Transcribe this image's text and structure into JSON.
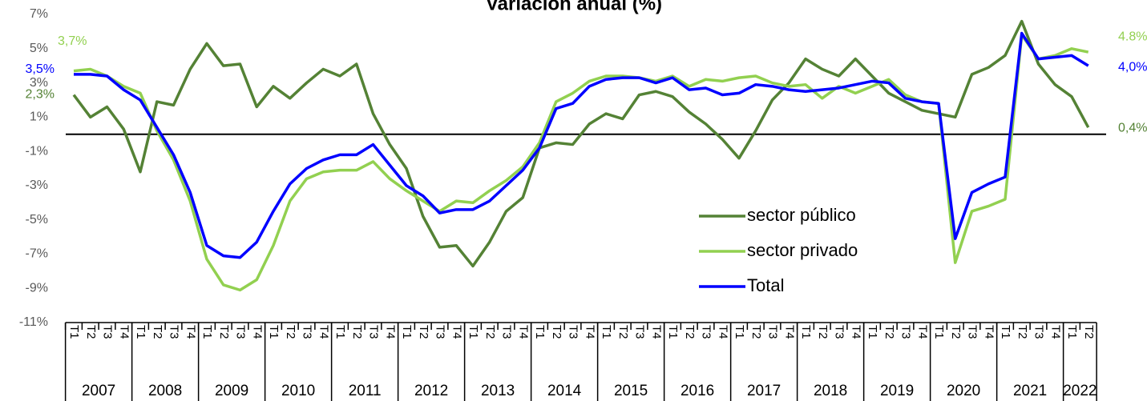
{
  "chart_data": {
    "type": "line",
    "title": "Variación anual (%)",
    "categories": [
      "T1",
      "T2",
      "T3",
      "T4",
      "T1",
      "T2",
      "T3",
      "T4",
      "T1",
      "T2",
      "T3",
      "T4",
      "T1",
      "T2",
      "T3",
      "T4",
      "T1",
      "T2",
      "T3",
      "T4",
      "T1",
      "T2",
      "T3",
      "T4",
      "T1",
      "T2",
      "T3",
      "T4",
      "T1",
      "T2",
      "T3",
      "T4",
      "T1",
      "T2",
      "T3",
      "T4",
      "T1",
      "T2",
      "T3",
      "T4",
      "T1",
      "T2",
      "T3",
      "T4",
      "T1",
      "T2",
      "T3",
      "T4",
      "T1",
      "T2",
      "T3",
      "T4",
      "T1",
      "T2",
      "T3",
      "T4",
      "T1",
      "T2",
      "T3",
      "T4",
      "T1",
      "T2"
    ],
    "years": [
      "2007",
      "2008",
      "2009",
      "2010",
      "2011",
      "2012",
      "2013",
      "2014",
      "2015",
      "2016",
      "2017",
      "2018",
      "2019",
      "2020",
      "2021",
      "2022"
    ],
    "ylim": [
      -11,
      7
    ],
    "yticks": [
      {
        "value": -11,
        "label": "-11%"
      },
      {
        "value": -9,
        "label": "-9%"
      },
      {
        "value": -7,
        "label": "-7%"
      },
      {
        "value": -5,
        "label": "-5%"
      },
      {
        "value": -3,
        "label": "-3%"
      },
      {
        "value": -1,
        "label": "-1%"
      },
      {
        "value": 1,
        "label": "1%"
      },
      {
        "value": 3,
        "label": "3%"
      },
      {
        "value": 5,
        "label": "5%"
      },
      {
        "value": 7,
        "label": "7%"
      }
    ],
    "series": [
      {
        "name": "sector público",
        "color": "#548235",
        "values": [
          2.3,
          1.0,
          1.6,
          0.3,
          -2.2,
          1.9,
          1.7,
          3.8,
          5.3,
          4.0,
          4.1,
          1.6,
          2.8,
          2.1,
          3.0,
          3.8,
          3.4,
          4.1,
          1.2,
          -0.6,
          -2.0,
          -4.8,
          -6.6,
          -6.5,
          -7.7,
          -6.3,
          -4.5,
          -3.7,
          -0.8,
          -0.5,
          -0.6,
          0.6,
          1.2,
          0.9,
          2.3,
          2.5,
          2.2,
          1.3,
          0.6,
          -0.3,
          -1.4,
          0.2,
          2.0,
          3.0,
          4.4,
          3.8,
          3.4,
          4.4,
          3.4,
          2.4,
          1.9,
          1.4,
          1.2,
          1.0,
          3.5,
          3.9,
          4.6,
          6.6,
          4.1,
          2.9,
          2.2,
          0.4
        ],
        "value_labels": [
          "2,3%",
          null,
          null,
          null,
          null,
          null,
          null,
          null,
          null,
          null,
          null,
          null,
          null,
          null,
          null,
          null,
          null,
          null,
          null,
          null,
          null,
          null,
          null,
          null,
          null,
          null,
          null,
          null,
          null,
          null,
          null,
          null,
          null,
          null,
          null,
          null,
          null,
          null,
          null,
          null,
          null,
          null,
          null,
          null,
          null,
          null,
          null,
          null,
          null,
          null,
          null,
          null,
          null,
          null,
          null,
          null,
          null,
          null,
          null,
          null,
          null,
          "0,4%"
        ]
      },
      {
        "name": "sector privado",
        "color": "#92d050",
        "values": [
          3.7,
          3.8,
          3.4,
          2.8,
          2.4,
          0.2,
          -1.5,
          -3.9,
          -7.3,
          -8.8,
          -9.1,
          -8.5,
          -6.5,
          -3.9,
          -2.6,
          -2.2,
          -2.1,
          -2.1,
          -1.6,
          -2.6,
          -3.3,
          -3.9,
          -4.5,
          -3.9,
          -4.0,
          -3.3,
          -2.7,
          -1.9,
          -0.5,
          1.9,
          2.4,
          3.1,
          3.4,
          3.4,
          3.3,
          3.1,
          3.4,
          2.8,
          3.2,
          3.1,
          3.3,
          3.4,
          3.0,
          2.8,
          2.9,
          2.1,
          2.8,
          2.4,
          2.8,
          3.2,
          2.3,
          1.9,
          1.8,
          -7.5,
          -4.5,
          -4.2,
          -3.8,
          5.8,
          4.4,
          4.6,
          5.0,
          4.8
        ],
        "value_labels": [
          "3,7%",
          null,
          null,
          null,
          null,
          null,
          null,
          null,
          null,
          null,
          null,
          null,
          null,
          null,
          null,
          null,
          null,
          null,
          null,
          null,
          null,
          null,
          null,
          null,
          null,
          null,
          null,
          null,
          null,
          null,
          null,
          null,
          null,
          null,
          null,
          null,
          null,
          null,
          null,
          null,
          null,
          null,
          null,
          null,
          null,
          null,
          null,
          null,
          null,
          null,
          null,
          null,
          null,
          null,
          null,
          null,
          null,
          null,
          null,
          null,
          null,
          "4.8%"
        ]
      },
      {
        "name": "Total",
        "color": "#0000ff",
        "values": [
          3.5,
          3.5,
          3.4,
          2.6,
          2.0,
          0.4,
          -1.2,
          -3.4,
          -6.5,
          -7.1,
          -7.2,
          -6.3,
          -4.5,
          -2.9,
          -2.0,
          -1.5,
          -1.2,
          -1.2,
          -0.6,
          -1.8,
          -3.0,
          -3.6,
          -4.6,
          -4.4,
          -4.4,
          -3.9,
          -3.0,
          -2.1,
          -0.8,
          1.5,
          1.8,
          2.8,
          3.2,
          3.3,
          3.3,
          3.0,
          3.3,
          2.6,
          2.7,
          2.3,
          2.4,
          2.9,
          2.8,
          2.6,
          2.5,
          2.6,
          2.7,
          2.9,
          3.1,
          3.0,
          2.1,
          1.9,
          1.8,
          -6.1,
          -3.4,
          -2.9,
          -2.5,
          5.9,
          4.4,
          4.5,
          4.6,
          4.0
        ],
        "value_labels": [
          "3,5%",
          null,
          null,
          null,
          null,
          null,
          null,
          null,
          null,
          null,
          null,
          null,
          null,
          null,
          null,
          null,
          null,
          null,
          null,
          null,
          null,
          null,
          null,
          null,
          null,
          null,
          null,
          null,
          null,
          null,
          null,
          null,
          null,
          null,
          null,
          null,
          null,
          null,
          null,
          null,
          null,
          null,
          null,
          null,
          null,
          null,
          null,
          null,
          null,
          null,
          null,
          null,
          null,
          null,
          null,
          null,
          null,
          null,
          null,
          null,
          null,
          "4,0%"
        ]
      }
    ]
  }
}
